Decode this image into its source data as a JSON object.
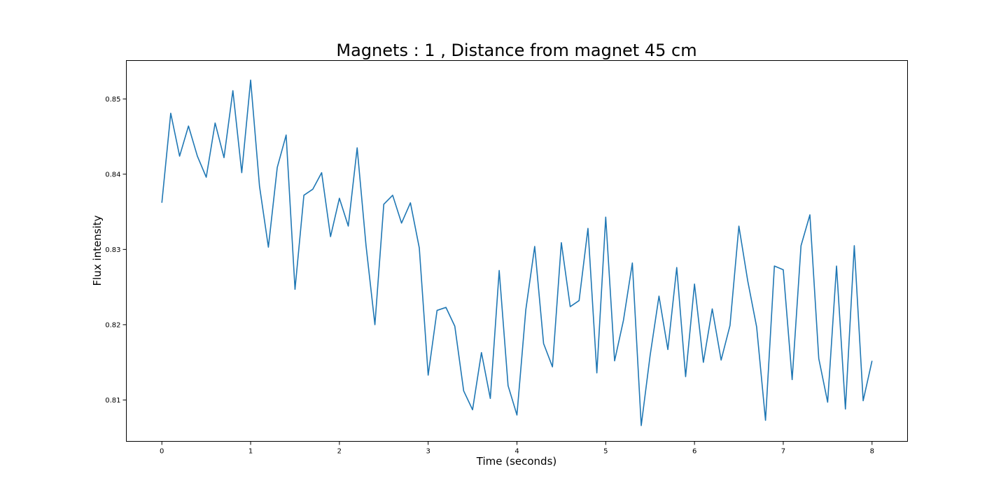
{
  "chart_data": {
    "type": "line",
    "title": "Magnets : 1 , Distance from magnet 45 cm",
    "xlabel": "Time (seconds)",
    "ylabel": "Flux intensity",
    "xlim": [
      -0.4,
      8.4
    ],
    "ylim": [
      0.8045,
      0.8551
    ],
    "x_ticks": [
      0,
      1,
      2,
      3,
      4,
      5,
      6,
      7,
      8
    ],
    "x_tick_labels": [
      "0",
      "1",
      "2",
      "3",
      "4",
      "5",
      "6",
      "7",
      "8"
    ],
    "y_ticks": [
      0.81,
      0.82,
      0.83,
      0.84,
      0.85
    ],
    "y_tick_labels": [
      "0.81",
      "0.82",
      "0.83",
      "0.84",
      "0.85"
    ],
    "grid": false,
    "legend": "none",
    "colors": {
      "line": "#1f77b4"
    },
    "series": [
      {
        "x": [
          0.0,
          0.1,
          0.2,
          0.3,
          0.4,
          0.5,
          0.6,
          0.7,
          0.8,
          0.9,
          1.0,
          1.1,
          1.2,
          1.3,
          1.4,
          1.5,
          1.6,
          1.7,
          1.8,
          1.9,
          2.0,
          2.1,
          2.2,
          2.3,
          2.4,
          2.5,
          2.6,
          2.7,
          2.8,
          2.9,
          3.0,
          3.1,
          3.2,
          3.3,
          3.4,
          3.5,
          3.6,
          3.7,
          3.8,
          3.9,
          4.0,
          4.1,
          4.2,
          4.3,
          4.4,
          4.5,
          4.6,
          4.7,
          4.8,
          4.9,
          5.0,
          5.1,
          5.2,
          5.3,
          5.4,
          5.5,
          5.6,
          5.7,
          5.8,
          5.9,
          6.0,
          6.1,
          6.2,
          6.3,
          6.4,
          6.5,
          6.6,
          6.7,
          6.8,
          6.9,
          7.0,
          7.1,
          7.2,
          7.3,
          7.4,
          7.5,
          7.6,
          7.7,
          7.8,
          7.9,
          8.0
        ],
        "values": [
          0.8362,
          0.8481,
          0.8424,
          0.8464,
          0.8424,
          0.8396,
          0.8468,
          0.8422,
          0.8511,
          0.8402,
          0.8525,
          0.8384,
          0.8303,
          0.8409,
          0.8452,
          0.8247,
          0.8372,
          0.838,
          0.8402,
          0.8317,
          0.8368,
          0.8331,
          0.8435,
          0.8305,
          0.82,
          0.836,
          0.8372,
          0.8335,
          0.8362,
          0.8302,
          0.8133,
          0.8219,
          0.8223,
          0.8198,
          0.8112,
          0.8087,
          0.8163,
          0.8102,
          0.8272,
          0.8119,
          0.808,
          0.822,
          0.8304,
          0.8175,
          0.8144,
          0.8309,
          0.8224,
          0.8232,
          0.8328,
          0.8136,
          0.8343,
          0.8152,
          0.8206,
          0.8282,
          0.8066,
          0.8159,
          0.8238,
          0.8167,
          0.8276,
          0.8131,
          0.8254,
          0.815,
          0.8221,
          0.8153,
          0.8199,
          0.8331,
          0.8258,
          0.8197,
          0.8073,
          0.8278,
          0.8273,
          0.8127,
          0.8305,
          0.8346,
          0.8155,
          0.8097,
          0.8278,
          0.8088,
          0.8305,
          0.8099,
          0.8152
        ]
      }
    ]
  }
}
